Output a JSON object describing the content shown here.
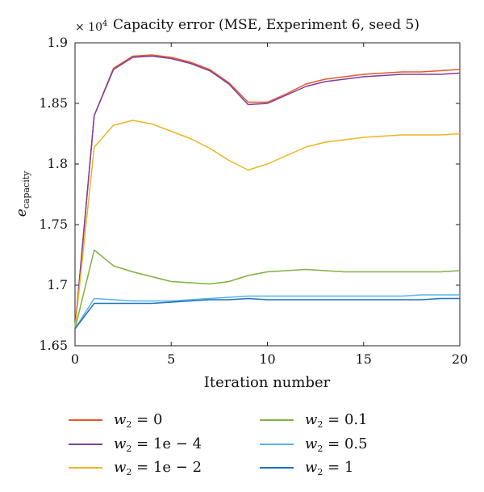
{
  "chart_data": {
    "type": "line",
    "title": "Capacity error (MSE, Experiment 6, seed 5)",
    "exponent_label": "× 10",
    "exponent_power": "4",
    "xlabel": "Iteration number",
    "ylabel_main": "e",
    "ylabel_sub": "capacity",
    "xlim": [
      0,
      20
    ],
    "ylim": [
      1.65,
      1.9
    ],
    "xticks": [
      0,
      5,
      10,
      15,
      20
    ],
    "xtick_labels": [
      "0",
      "5",
      "10",
      "15",
      "20"
    ],
    "yticks": [
      1.65,
      1.7,
      1.75,
      1.8,
      1.85,
      1.9
    ],
    "ytick_labels": [
      "1.65",
      "1.7",
      "1.75",
      "1.8",
      "1.85",
      "1.9"
    ],
    "grid": false,
    "legend_placement": "bottom",
    "x": [
      0,
      1,
      2,
      3,
      4,
      5,
      6,
      7,
      8,
      9,
      10,
      11,
      12,
      13,
      14,
      15,
      16,
      17,
      18,
      19,
      20
    ],
    "series": [
      {
        "name": "w2 = 0",
        "legend_base": "w",
        "legend_sub": "2",
        "legend_rest": " = 0",
        "color": "#e8572b",
        "values": [
          1.664,
          1.84,
          1.879,
          1.889,
          1.89,
          1.888,
          1.884,
          1.878,
          1.867,
          1.851,
          1.851,
          1.858,
          1.866,
          1.87,
          1.872,
          1.874,
          1.875,
          1.876,
          1.876,
          1.877,
          1.878
        ]
      },
      {
        "name": "w2 = 1e − 4",
        "legend_base": "w",
        "legend_sub": "2",
        "legend_rest": " = 1e − 4",
        "color": "#7b3f9e",
        "values": [
          1.664,
          1.84,
          1.878,
          1.888,
          1.889,
          1.887,
          1.883,
          1.877,
          1.866,
          1.849,
          1.85,
          1.857,
          1.864,
          1.868,
          1.87,
          1.872,
          1.873,
          1.874,
          1.874,
          1.874,
          1.875
        ]
      },
      {
        "name": "w2 = 1e − 2",
        "legend_base": "w",
        "legend_sub": "2",
        "legend_rest": " = 1e − 2",
        "color": "#f0b323",
        "values": [
          1.664,
          1.814,
          1.832,
          1.836,
          1.833,
          1.827,
          1.821,
          1.813,
          1.803,
          1.795,
          1.8,
          1.807,
          1.814,
          1.818,
          1.82,
          1.822,
          1.823,
          1.824,
          1.824,
          1.824,
          1.825
        ]
      },
      {
        "name": "w2 = 0.1",
        "legend_base": "w",
        "legend_sub": "2",
        "legend_rest": " = 0.1",
        "color": "#7fb041",
        "values": [
          1.664,
          1.729,
          1.716,
          1.711,
          1.707,
          1.703,
          1.702,
          1.701,
          1.703,
          1.708,
          1.711,
          1.712,
          1.713,
          1.712,
          1.711,
          1.711,
          1.711,
          1.711,
          1.711,
          1.711,
          1.712
        ]
      },
      {
        "name": "w2 = 0.5",
        "legend_base": "w",
        "legend_sub": "2",
        "legend_rest": " = 0.5",
        "color": "#56b4e9",
        "values": [
          1.664,
          1.689,
          1.688,
          1.687,
          1.687,
          1.687,
          1.688,
          1.689,
          1.69,
          1.691,
          1.691,
          1.691,
          1.691,
          1.691,
          1.691,
          1.691,
          1.691,
          1.691,
          1.692,
          1.692,
          1.692
        ]
      },
      {
        "name": "w2 = 1",
        "legend_base": "w",
        "legend_sub": "2",
        "legend_rest": " = 1",
        "color": "#1f6fc4",
        "values": [
          1.664,
          1.685,
          1.685,
          1.685,
          1.685,
          1.686,
          1.687,
          1.688,
          1.688,
          1.689,
          1.688,
          1.688,
          1.688,
          1.688,
          1.688,
          1.688,
          1.688,
          1.688,
          1.688,
          1.689,
          1.689
        ]
      }
    ]
  }
}
